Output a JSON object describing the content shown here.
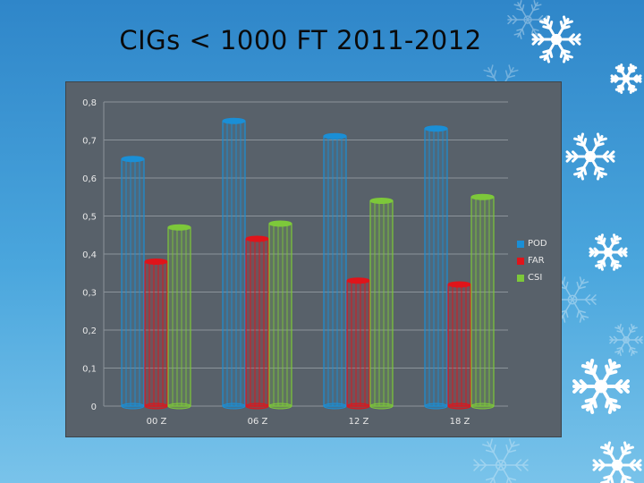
{
  "slide": {
    "title": "CIGs < 1000 FT 2011-2012"
  },
  "colors": {
    "POD": "#1a8fd6",
    "FAR": "#e0141a",
    "CSI": "#7dc83a"
  },
  "chart_data": {
    "type": "bar",
    "title": "",
    "xlabel": "",
    "ylabel": "",
    "categories": [
      "00 Z",
      "06 Z",
      "12 Z",
      "18 Z"
    ],
    "series": [
      {
        "name": "POD",
        "values": [
          0.65,
          0.75,
          0.71,
          0.73
        ]
      },
      {
        "name": "FAR",
        "values": [
          0.38,
          0.44,
          0.33,
          0.32
        ]
      },
      {
        "name": "CSI",
        "values": [
          0.47,
          0.48,
          0.54,
          0.55
        ]
      }
    ],
    "ylim": [
      0,
      0.8
    ],
    "yticks": [
      "0",
      "0,1",
      "0,2",
      "0,3",
      "0,4",
      "0,5",
      "0,6",
      "0,7",
      "0,8"
    ],
    "grid": true,
    "legend": "right"
  }
}
